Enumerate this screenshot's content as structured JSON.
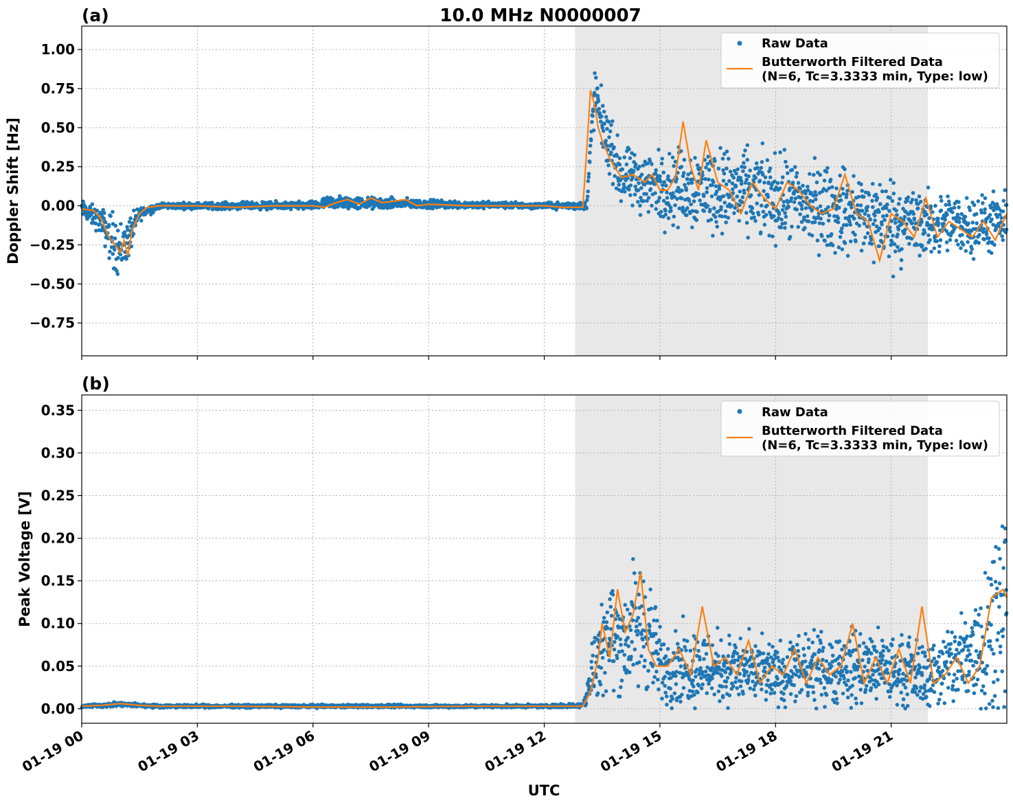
{
  "figure": {
    "title": "10.0 MHz N0000007",
    "xlabel": "UTC",
    "x_ticks": [
      "01-19 00",
      "01-19 03",
      "01-19 06",
      "01-19 09",
      "01-19 12",
      "01-19 15",
      "01-19 18",
      "01-19 21"
    ],
    "x_tick_hours": [
      0,
      3,
      6,
      9,
      12,
      15,
      18,
      21
    ],
    "xlim_hours": [
      0,
      24
    ],
    "shaded_region_hours": [
      12.8,
      21.95
    ],
    "colors": {
      "raw": "#1f77b4",
      "filtered": "#ff7f0e",
      "shade": "#e8e8e8"
    }
  },
  "chart_data": [
    {
      "panel": "(a)",
      "type": "scatter",
      "ylabel": "Doppler Shift [Hz]",
      "ylim": [
        -0.96,
        1.15
      ],
      "y_ticks": [
        1.0,
        0.75,
        0.5,
        0.25,
        0.0,
        -0.25,
        -0.5,
        -0.75
      ],
      "y_tick_labels": [
        "1.00",
        "0.75",
        "0.50",
        "0.25",
        "0.00",
        "−0.25",
        "−0.50",
        "−0.75"
      ],
      "grid": true,
      "legend": {
        "placement": "top-right",
        "raw_label": "Raw Data",
        "filtered_label_line1": "Butterworth Filtered Data",
        "filtered_label_line2": "(N=6, Tc=3.3333 min, Type: low)"
      },
      "filtered_series": {
        "name": "Butterworth Filtered Data",
        "x": [
          0,
          0.3,
          0.5,
          0.7,
          0.9,
          1.0,
          1.1,
          1.2,
          1.3,
          1.5,
          1.7,
          2.0,
          3,
          4,
          5,
          6,
          6.3,
          6.6,
          6.9,
          7.2,
          7.5,
          7.8,
          8.1,
          8.4,
          8.7,
          9,
          10,
          11,
          12,
          12.5,
          13.0,
          13.1,
          13.2,
          13.3,
          13.4,
          13.5,
          13.7,
          14.0,
          14.3,
          14.6,
          14.8,
          15.0,
          15.2,
          15.4,
          15.6,
          15.8,
          16.0,
          16.2,
          16.5,
          16.8,
          17.1,
          17.4,
          17.7,
          18.0,
          18.3,
          18.6,
          18.9,
          19.2,
          19.5,
          19.8,
          20.1,
          20.4,
          20.7,
          21.0,
          21.3,
          21.6,
          21.9,
          22.2,
          22.5,
          22.8,
          23.1,
          23.4,
          23.7,
          24.0
        ],
        "y": [
          -0.02,
          -0.03,
          -0.08,
          -0.2,
          -0.26,
          -0.3,
          -0.22,
          -0.32,
          -0.16,
          -0.05,
          -0.01,
          0.0,
          0.0,
          -0.01,
          0.0,
          0.0,
          -0.01,
          0.02,
          0.04,
          0.01,
          0.05,
          0.02,
          0.03,
          0.04,
          0.0,
          0.01,
          0.0,
          0.0,
          0.0,
          -0.01,
          -0.01,
          0.35,
          0.74,
          0.65,
          0.5,
          0.42,
          0.3,
          0.18,
          0.2,
          0.15,
          0.2,
          0.1,
          0.1,
          0.18,
          0.54,
          0.25,
          0.1,
          0.42,
          0.15,
          0.1,
          -0.05,
          0.15,
          0.05,
          -0.02,
          0.15,
          0.1,
          0.0,
          -0.05,
          -0.02,
          0.2,
          -0.05,
          -0.1,
          -0.35,
          -0.05,
          -0.1,
          -0.2,
          0.05,
          -0.2,
          -0.1,
          -0.15,
          -0.2,
          -0.1,
          -0.22,
          -0.05
        ]
      },
      "raw_series": {
        "name": "Raw Data",
        "envelope_x": [
          0,
          0.5,
          0.8,
          1.0,
          1.2,
          1.5,
          2.0,
          6.0,
          6.5,
          9.0,
          12.0,
          13.1,
          13.3,
          13.6,
          14.0,
          15.0,
          16.0,
          18.0,
          20.0,
          21.0,
          22.0,
          24.0
        ],
        "envelope_center": [
          -0.02,
          -0.1,
          -0.22,
          -0.28,
          -0.22,
          -0.05,
          0.0,
          0.0,
          0.02,
          0.01,
          0.0,
          0.0,
          0.72,
          0.45,
          0.18,
          0.12,
          0.12,
          0.05,
          -0.05,
          -0.1,
          -0.12,
          -0.12
        ],
        "envelope_spread": [
          0.06,
          0.09,
          0.2,
          0.2,
          0.15,
          0.05,
          0.02,
          0.03,
          0.05,
          0.03,
          0.02,
          0.03,
          0.2,
          0.2,
          0.2,
          0.25,
          0.3,
          0.3,
          0.3,
          0.32,
          0.22,
          0.2
        ]
      }
    },
    {
      "panel": "(b)",
      "type": "scatter",
      "ylabel": "Peak Voltage [V]",
      "ylim": [
        -0.017,
        0.368
      ],
      "y_ticks": [
        0.35,
        0.3,
        0.25,
        0.2,
        0.15,
        0.1,
        0.05,
        0.0
      ],
      "y_tick_labels": [
        "0.35",
        "0.30",
        "0.25",
        "0.20",
        "0.15",
        "0.10",
        "0.05",
        "0.00"
      ],
      "grid": true,
      "legend": {
        "placement": "top-right",
        "raw_label": "Raw Data",
        "filtered_label_line1": "Butterworth Filtered Data",
        "filtered_label_line2": "(N=6, Tc=3.3333 min, Type: low)"
      },
      "filtered_series": {
        "name": "Butterworth Filtered Data",
        "x": [
          0,
          0.5,
          1.0,
          1.5,
          2,
          4,
          6,
          8,
          10,
          12,
          13.0,
          13.2,
          13.4,
          13.5,
          13.7,
          13.9,
          14.1,
          14.3,
          14.5,
          14.7,
          14.9,
          15.2,
          15.5,
          15.8,
          16.1,
          16.4,
          16.7,
          17.0,
          17.3,
          17.6,
          17.9,
          18.2,
          18.5,
          18.8,
          19.1,
          19.4,
          19.7,
          20.0,
          20.3,
          20.6,
          20.9,
          21.2,
          21.5,
          21.8,
          22.1,
          22.4,
          22.7,
          23.0,
          23.3,
          23.6,
          23.9,
          24.0
        ],
        "y": [
          0.003,
          0.004,
          0.006,
          0.004,
          0.003,
          0.003,
          0.002,
          0.002,
          0.003,
          0.003,
          0.003,
          0.02,
          0.06,
          0.1,
          0.06,
          0.14,
          0.09,
          0.11,
          0.16,
          0.07,
          0.05,
          0.05,
          0.07,
          0.04,
          0.12,
          0.05,
          0.06,
          0.04,
          0.08,
          0.03,
          0.05,
          0.04,
          0.07,
          0.03,
          0.06,
          0.04,
          0.05,
          0.1,
          0.03,
          0.06,
          0.03,
          0.07,
          0.03,
          0.12,
          0.03,
          0.04,
          0.06,
          0.03,
          0.05,
          0.13,
          0.14,
          0.13
        ]
      },
      "raw_series": {
        "name": "Raw Data",
        "envelope_x": [
          0,
          1.0,
          2.0,
          12.0,
          13.0,
          13.3,
          13.6,
          14.0,
          14.6,
          15.0,
          16.0,
          18.0,
          20.0,
          22.0,
          23.0,
          24.0
        ],
        "envelope_center": [
          0.003,
          0.005,
          0.003,
          0.003,
          0.004,
          0.05,
          0.09,
          0.08,
          0.1,
          0.05,
          0.05,
          0.04,
          0.05,
          0.04,
          0.06,
          0.12
        ],
        "envelope_spread": [
          0.002,
          0.003,
          0.002,
          0.002,
          0.003,
          0.05,
          0.07,
          0.07,
          0.09,
          0.05,
          0.05,
          0.04,
          0.05,
          0.04,
          0.07,
          0.15
        ]
      }
    }
  ]
}
